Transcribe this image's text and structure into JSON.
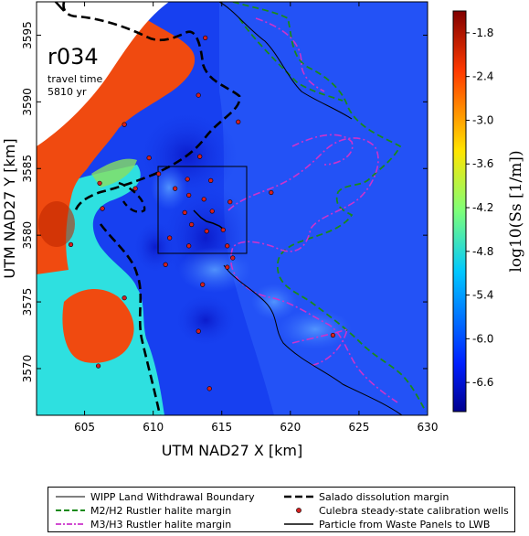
{
  "map": {
    "run_id": "r034",
    "annotation_line1": "travel time",
    "annotation_line2": "5810 yr",
    "xlabel": "UTM NAD27 X [km]",
    "ylabel": "UTM NAD27 Y [km]",
    "x_ticks": [
      "605",
      "610",
      "615",
      "620",
      "625",
      "630"
    ],
    "y_ticks": [
      "3570",
      "3575",
      "3580",
      "3585",
      "3590",
      "3595"
    ],
    "xlim": [
      601.5,
      630
    ],
    "ylim": [
      3566.5,
      3597.5
    ],
    "colorbar_label": "log10(Ss [1/m])",
    "colorbar_ticks": [
      "-1.8",
      "-2.4",
      "-3.0",
      "-3.6",
      "-4.2",
      "-4.8",
      "-5.4",
      "-6.0",
      "-6.6"
    ],
    "colorbar_range": [
      -7.0,
      -1.5
    ],
    "colors": {
      "background_field": "#1740f0",
      "low_zone": "#0a1ed0",
      "cyan_zone": "#2ee0e0",
      "red_zone": "#f04a10",
      "m2_margin": "#1a8a1a",
      "m3_margin": "#cc33cc",
      "well_fill": "#d42020"
    }
  },
  "legend": {
    "items": [
      {
        "label": "WIPP Land Withdrawal Boundary",
        "style": "thin-solid",
        "color": "#000000"
      },
      {
        "label": "Salado dissolution margin",
        "style": "thick-dashed",
        "color": "#000000"
      },
      {
        "label": "M2/H2 Rustler halite margin",
        "style": "dashed",
        "color": "#1a8a1a"
      },
      {
        "label": "Culebra steady-state calibration wells",
        "style": "marker",
        "color": "#d42020"
      },
      {
        "label": "M3/H3 Rustler halite margin",
        "style": "dash-dot",
        "color": "#cc33cc"
      },
      {
        "label": "Particle from Waste Panels to LWB",
        "style": "solid",
        "color": "#000000"
      }
    ]
  },
  "wells": [
    [
      613.8,
      3594.8
    ],
    [
      613.3,
      3590.5
    ],
    [
      616.2,
      3588.5
    ],
    [
      607.9,
      3588.3
    ],
    [
      609.7,
      3585.8
    ],
    [
      613.4,
      3585.9
    ],
    [
      610.4,
      3584.6
    ],
    [
      612.5,
      3584.2
    ],
    [
      614.2,
      3584.1
    ],
    [
      606.1,
      3583.9
    ],
    [
      608.7,
      3583.5
    ],
    [
      611.6,
      3583.5
    ],
    [
      612.6,
      3583.0
    ],
    [
      613.7,
      3582.7
    ],
    [
      615.6,
      3582.5
    ],
    [
      618.6,
      3583.2
    ],
    [
      606.3,
      3582.0
    ],
    [
      612.3,
      3581.7
    ],
    [
      614.3,
      3581.8
    ],
    [
      612.8,
      3580.8
    ],
    [
      613.9,
      3580.3
    ],
    [
      615.1,
      3580.4
    ],
    [
      611.2,
      3579.8
    ],
    [
      612.6,
      3579.2
    ],
    [
      615.4,
      3579.2
    ],
    [
      604.0,
      3579.3
    ],
    [
      615.8,
      3578.3
    ],
    [
      610.9,
      3577.8
    ],
    [
      615.4,
      3577.6
    ],
    [
      613.6,
      3576.3
    ],
    [
      607.9,
      3575.3
    ],
    [
      613.3,
      3572.8
    ],
    [
      623.1,
      3572.5
    ],
    [
      606.0,
      3570.2
    ],
    [
      614.1,
      3568.5
    ]
  ]
}
